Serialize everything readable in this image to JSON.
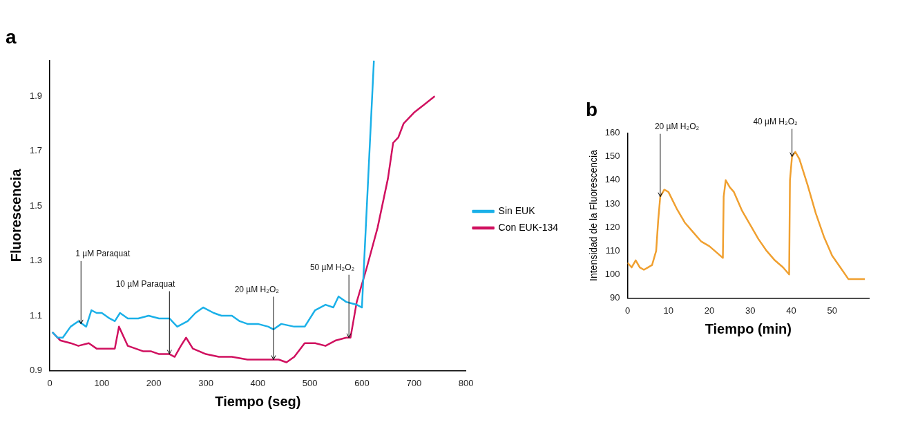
{
  "chart_data": [
    {
      "type": "line",
      "title": "a",
      "xlabel": "Tiempo (seg)",
      "ylabel": "Fluorescencia",
      "xlim": [
        0,
        800
      ],
      "xticks": [
        0,
        100,
        200,
        300,
        400,
        500,
        600,
        700,
        800
      ],
      "ylim": [
        0.9,
        2.03
      ],
      "yticks": [
        0.9,
        1.1,
        1.3,
        1.5,
        1.7,
        1.9
      ],
      "grid": false,
      "legend": "right",
      "marker": "none",
      "line_style": "solid",
      "series": [
        {
          "name": "Sin EUK",
          "color": "#1ab0e8",
          "x": [
            5,
            15,
            25,
            40,
            55,
            70,
            80,
            90,
            100,
            115,
            125,
            135,
            150,
            170,
            190,
            210,
            230,
            245,
            265,
            280,
            295,
            315,
            330,
            350,
            365,
            380,
            400,
            420,
            430,
            445,
            470,
            490,
            510,
            530,
            545,
            555,
            570,
            590,
            600,
            623
          ],
          "values": [
            1.04,
            1.02,
            1.02,
            1.06,
            1.08,
            1.06,
            1.12,
            1.11,
            1.11,
            1.09,
            1.08,
            1.11,
            1.09,
            1.09,
            1.1,
            1.09,
            1.09,
            1.06,
            1.08,
            1.11,
            1.13,
            1.11,
            1.1,
            1.1,
            1.08,
            1.07,
            1.07,
            1.06,
            1.05,
            1.07,
            1.06,
            1.06,
            1.12,
            1.14,
            1.13,
            1.17,
            1.15,
            1.14,
            1.13,
            2.03
          ]
        },
        {
          "name": "Con EUK-134",
          "color": "#d0105f",
          "x": [
            5,
            20,
            40,
            55,
            75,
            90,
            105,
            115,
            125,
            133,
            150,
            165,
            180,
            195,
            210,
            230,
            240,
            252,
            262,
            275,
            300,
            325,
            350,
            380,
            410,
            440,
            455,
            470,
            490,
            510,
            530,
            550,
            570,
            578,
            590,
            610,
            630,
            650,
            660,
            670,
            680,
            700,
            720,
            740
          ],
          "values": [
            1.04,
            1.01,
            1.0,
            0.99,
            1.0,
            0.98,
            0.98,
            0.98,
            0.98,
            1.06,
            0.99,
            0.98,
            0.97,
            0.97,
            0.96,
            0.96,
            0.95,
            0.99,
            1.02,
            0.98,
            0.96,
            0.95,
            0.95,
            0.94,
            0.94,
            0.94,
            0.93,
            0.95,
            1.0,
            1.0,
            0.99,
            1.01,
            1.02,
            1.02,
            1.15,
            1.28,
            1.42,
            1.6,
            1.73,
            1.75,
            1.8,
            1.84,
            1.87,
            1.9
          ]
        }
      ],
      "annotations": [
        {
          "text": "1 µM Paraquat",
          "x": 60,
          "y": 1.07
        },
        {
          "text": "10 µM Paraquat",
          "x": 230,
          "y": 0.96
        },
        {
          "text": "20 µM H₂O₂",
          "x": 430,
          "y": 0.94
        },
        {
          "text": "50 µM H₂O₂",
          "x": 575,
          "y": 1.02
        }
      ]
    },
    {
      "type": "line",
      "title": "b",
      "xlabel": "Tiempo (min)",
      "ylabel": "Intensidad de la Fluorescencia",
      "xlim": [
        0,
        59
      ],
      "xticks": [
        0,
        10,
        20,
        30,
        40,
        50
      ],
      "ylim": [
        90,
        160
      ],
      "yticks": [
        90,
        100,
        110,
        120,
        130,
        140,
        150,
        160
      ],
      "grid": false,
      "legend": false,
      "marker": "none",
      "line_style": "solid",
      "series": [
        {
          "color": "#f0a030",
          "x": [
            0,
            1,
            2,
            3,
            4,
            5,
            6,
            7,
            7.5,
            8,
            9,
            10,
            12,
            14,
            16,
            18,
            20,
            22,
            23.3,
            23.5,
            24,
            25,
            26,
            28,
            30,
            32,
            34,
            36,
            38,
            39.5,
            39.7,
            40.2,
            41,
            42,
            44,
            46,
            48,
            50,
            52,
            54,
            56,
            58
          ],
          "values": [
            105,
            103,
            106,
            103,
            102,
            103,
            104,
            110,
            123,
            133,
            136,
            135,
            128,
            122,
            118,
            114,
            112,
            109,
            107,
            133,
            140,
            137,
            135,
            127,
            121,
            115,
            110,
            106,
            103,
            100,
            140,
            150,
            152,
            149,
            138,
            126,
            116,
            108,
            103,
            98,
            98,
            98
          ]
        }
      ],
      "annotations": [
        {
          "text": "20 µM H₂O₂",
          "x": 8,
          "y": 133
        },
        {
          "text": "40 µM H₂O₂",
          "x": 40.2,
          "y": 150
        }
      ]
    }
  ]
}
